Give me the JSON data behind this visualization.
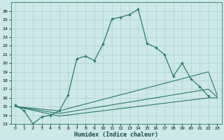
{
  "xlabel": "Humidex (Indice chaleur)",
  "bg_color": "#cce8e8",
  "line_color": "#2a7a6a",
  "xlim": [
    -0.5,
    23.5
  ],
  "ylim": [
    13,
    27
  ],
  "xticks": [
    0,
    1,
    2,
    3,
    4,
    5,
    6,
    7,
    8,
    9,
    10,
    11,
    12,
    13,
    14,
    15,
    16,
    17,
    18,
    19,
    20,
    21,
    22,
    23
  ],
  "yticks": [
    13,
    14,
    15,
    16,
    17,
    18,
    19,
    20,
    21,
    22,
    23,
    24,
    25,
    26
  ],
  "series": [
    {
      "x": [
        0,
        1,
        2,
        3,
        4,
        5,
        6,
        7,
        8,
        9,
        10,
        11,
        12,
        13,
        14,
        15,
        16,
        17,
        18,
        19,
        20,
        21,
        22
      ],
      "y": [
        15.2,
        14.5,
        13.0,
        13.8,
        14.0,
        14.5,
        16.3,
        20.5,
        20.8,
        20.3,
        22.2,
        25.1,
        25.3,
        25.6,
        26.2,
        22.3,
        21.8,
        21.0,
        18.5,
        20.0,
        18.2,
        17.3,
        16.2
      ],
      "marker": true
    },
    {
      "x": [
        0,
        5,
        22,
        23
      ],
      "y": [
        15.0,
        14.5,
        19.0,
        16.3
      ],
      "marker": false
    },
    {
      "x": [
        0,
        5,
        22,
        23
      ],
      "y": [
        15.0,
        14.2,
        17.0,
        16.1
      ],
      "marker": false
    },
    {
      "x": [
        0,
        5,
        22,
        23
      ],
      "y": [
        15.0,
        13.9,
        16.0,
        16.0
      ],
      "marker": false
    }
  ]
}
